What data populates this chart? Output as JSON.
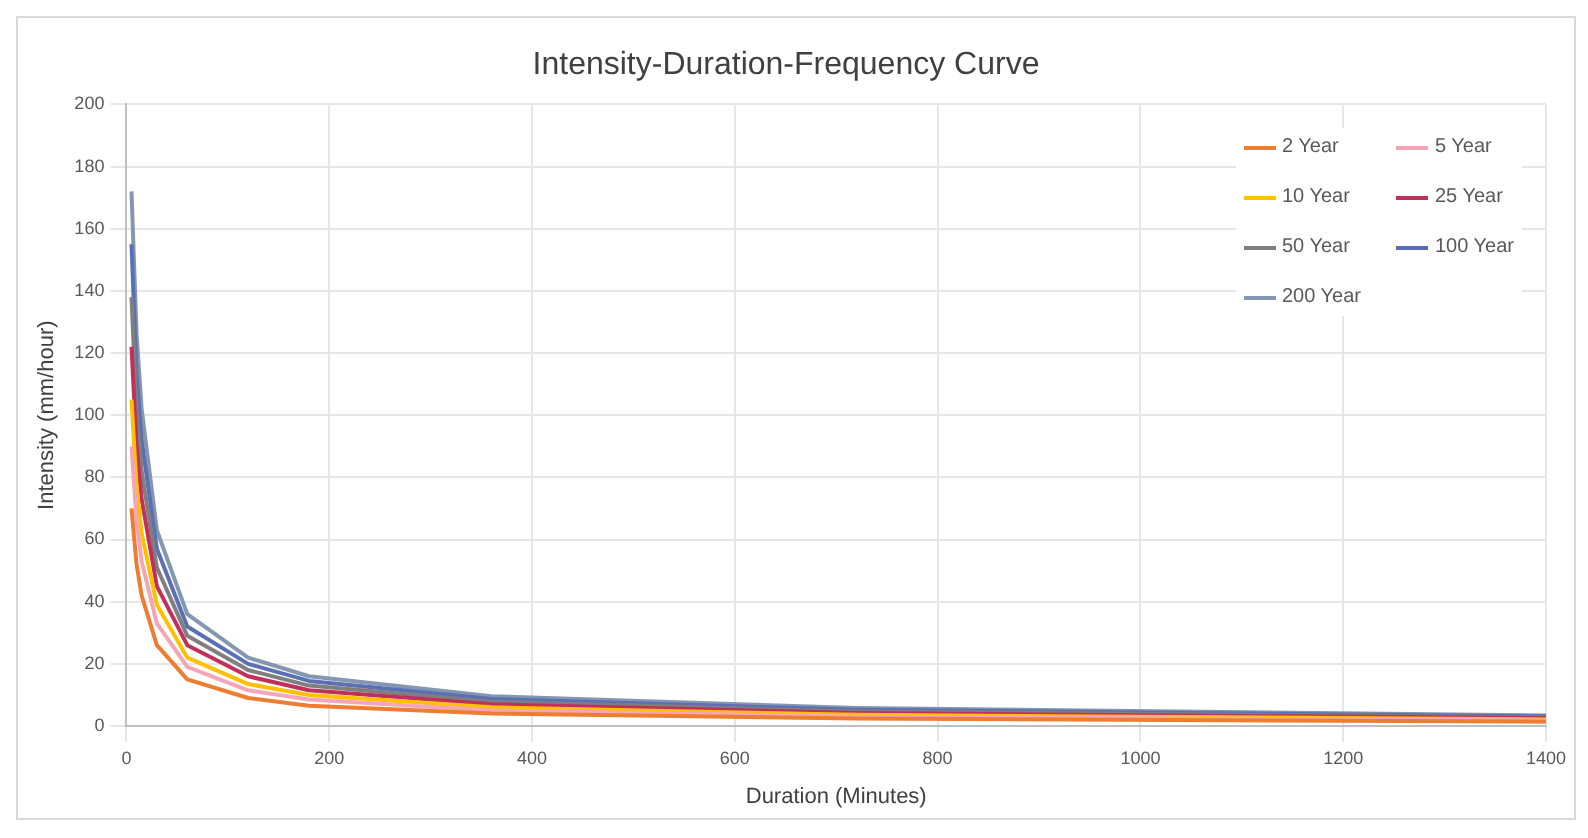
{
  "chart_data": {
    "type": "line",
    "title": "Intensity-Duration-Frequency Curve",
    "xlabel": "Duration (Minutes)",
    "ylabel": "Intensity (mm/hour)",
    "x": [
      5,
      10,
      15,
      30,
      60,
      120,
      180,
      360,
      720,
      1400
    ],
    "series": [
      {
        "name": "2 Year",
        "color": "#ed7d31",
        "values": [
          70,
          52,
          42,
          26,
          15,
          9,
          6.5,
          4,
          2.4,
          1.4
        ]
      },
      {
        "name": "5 Year",
        "color": "#f4a6b8",
        "values": [
          90,
          66,
          53,
          33,
          19,
          11.5,
          8.5,
          5,
          3,
          1.8
        ]
      },
      {
        "name": "10 Year",
        "color": "#ffc000",
        "values": [
          105,
          77,
          62,
          39,
          22,
          13.5,
          10,
          6,
          3.6,
          2.1
        ]
      },
      {
        "name": "25 Year",
        "color": "#c0305a",
        "values": [
          122,
          90,
          73,
          45,
          26,
          16,
          11.5,
          7,
          4.2,
          2.5
        ]
      },
      {
        "name": "50 Year",
        "color": "#7f7f7f",
        "values": [
          138,
          101,
          82,
          51,
          29,
          18,
          13,
          7.8,
          4.7,
          2.8
        ]
      },
      {
        "name": "100 Year",
        "color": "#5b6fb5",
        "values": [
          155,
          113,
          92,
          57,
          32,
          20,
          14.5,
          8.7,
          5.2,
          3.1
        ]
      },
      {
        "name": "200 Year",
        "color": "#8497b0",
        "values": [
          172,
          126,
          102,
          63,
          36,
          22,
          16,
          9.6,
          5.8,
          3.4
        ]
      }
    ],
    "xlim": [
      0,
      1400
    ],
    "xticks": [
      0,
      200,
      400,
      600,
      800,
      1000,
      1200,
      1400
    ],
    "ylim": [
      0,
      200
    ],
    "yticks": [
      0,
      20,
      40,
      60,
      80,
      100,
      120,
      140,
      160,
      180,
      200
    ],
    "grid": true,
    "legend": "top right",
    "marker": "none",
    "line_style": "solid"
  }
}
